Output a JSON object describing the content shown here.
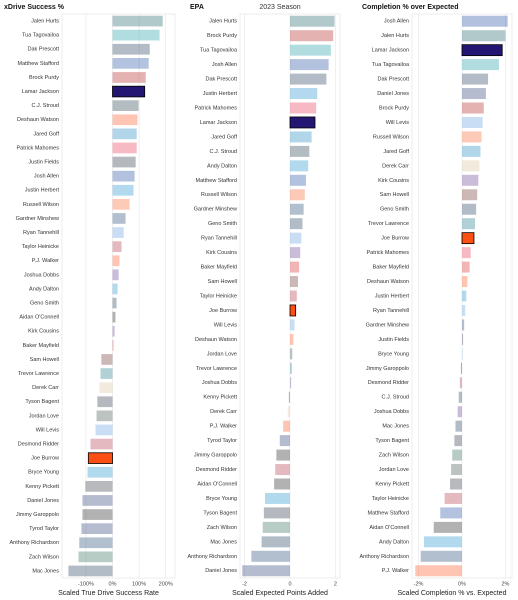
{
  "title": "2023 Season",
  "chart_data": [
    {
      "type": "bar",
      "orientation": "horizontal",
      "title": "xDrive Success %",
      "x_label": "Scaled True Drive Success Rate",
      "categories": [
        "Jalen Hurts",
        "Tua Tagovailoa",
        "Dak Prescott",
        "Matthew Stafford",
        "Brock Purdy",
        "Lamar Jackson",
        "C.J. Stroud",
        "Deshaun Watson",
        "Jared Goff",
        "Patrick Mahomes",
        "Justin Fields",
        "Josh Allen",
        "Justin Herbert",
        "Russell Wilson",
        "Gardner Minshew",
        "Ryan Tannehill",
        "Taylor Heinicke",
        "P.J. Walker",
        "Joshua Dobbs",
        "Andy Dalton",
        "Geno Smith",
        "Aidan O'Connell",
        "Kirk Cousins",
        "Baker Mayfield",
        "Sam Howell",
        "Trevor Lawrence",
        "Derek Carr",
        "Tyson Bagent",
        "Jordan Love",
        "Will Levis",
        "Desmond Ridder",
        "Joe Burrow",
        "Bryce Young",
        "Kenny Pickett",
        "Daniel Jones",
        "Jimmy Garoppolo",
        "Tyrod Taylor",
        "Anthony Richardson",
        "Zach Wilson",
        "Mac Jones"
      ],
      "values": [
        189,
        177,
        140,
        136,
        125,
        121,
        98,
        94,
        91,
        91,
        87,
        83,
        79,
        64,
        49,
        42,
        34,
        26,
        23,
        19,
        15,
        11,
        8,
        4,
        -42,
        -45,
        -49,
        -57,
        -60,
        -64,
        -83,
        -91,
        -94,
        -102,
        -113,
        -113,
        -117,
        -125,
        -128,
        -166
      ],
      "colors": [
        "#004C54",
        "#008E97",
        "#041E42",
        "#003594",
        "#AA0000",
        "#241773",
        "#03202F",
        "#FF3C00",
        "#0076B6",
        "#E31837",
        "#0B162A",
        "#00338D",
        "#0080C6",
        "#FB4F14",
        "#002C5F",
        "#4B92DB",
        "#A71930",
        "#FF3C00",
        "#4F2683",
        "#0085CA",
        "#002244",
        "#000000",
        "#4F2683",
        "#D50A0A",
        "#5A1414",
        "#006778",
        "#D3BC8D",
        "#0B162A",
        "#203731",
        "#4B92DB",
        "#A71930",
        "#FB4F14",
        "#0085CA",
        "#101820",
        "#0B2265",
        "#000000",
        "#0B2265",
        "#002C5F",
        "#125740",
        "#002244"
      ],
      "xlim": [
        -190,
        235
      ],
      "xticks": [
        {
          "value": -100,
          "label": "-100%"
        },
        {
          "value": 0,
          "label": "0%"
        },
        {
          "value": 100,
          "label": "100%"
        },
        {
          "value": 200,
          "label": "200%"
        }
      ]
    },
    {
      "type": "bar",
      "orientation": "horizontal",
      "title": "EPA",
      "x_label": "Scaled Expected Points Added",
      "categories": [
        "Jalen Hurts",
        "Brock Purdy",
        "Tua Tagovailoa",
        "Josh Allen",
        "Dak Prescott",
        "Justin Herbert",
        "Patrick Mahomes",
        "Lamar Jackson",
        "Jared Goff",
        "C.J. Stroud",
        "Andy Dalton",
        "Matthew Stafford",
        "Russell Wilson",
        "Gardner Minshew",
        "Geno Smith",
        "Ryan Tannehill",
        "Kirk Cousins",
        "Baker Mayfield",
        "Sam Howell",
        "Taylor Heinicke",
        "Joe Burrow",
        "Will Levis",
        "Deshaun Watson",
        "Jordan Love",
        "Trevor Lawrence",
        "Joshua Dobbs",
        "Kenny Pickett",
        "Derek Carr",
        "P.J. Walker",
        "Tyrod Taylor",
        "Jimmy Garoppolo",
        "Desmond Ridder",
        "Aidan O'Connell",
        "Bryce Young",
        "Tyson Bagent",
        "Zach Wilson",
        "Mac Jones",
        "Anthony Richardson",
        "Daniel Jones"
      ],
      "values": [
        1.96,
        1.9,
        1.8,
        1.7,
        1.6,
        1.2,
        1.15,
        1.1,
        0.95,
        0.85,
        0.8,
        0.7,
        0.65,
        0.6,
        0.55,
        0.5,
        0.45,
        0.4,
        0.35,
        0.3,
        0.25,
        0.2,
        0.15,
        0.1,
        0.08,
        0.05,
        -0.05,
        -0.1,
        -0.3,
        -0.45,
        -0.6,
        -0.65,
        -0.7,
        -1.1,
        -1.15,
        -1.2,
        -1.25,
        -1.7,
        -2.1
      ],
      "colors": [
        "#004C54",
        "#AA0000",
        "#008E97",
        "#00338D",
        "#041E42",
        "#0080C6",
        "#E31837",
        "#241773",
        "#0076B6",
        "#03202F",
        "#0085CA",
        "#003594",
        "#FB4F14",
        "#002C5F",
        "#002244",
        "#4B92DB",
        "#4F2683",
        "#D50A0A",
        "#5A1414",
        "#A71930",
        "#FB4F14",
        "#4B92DB",
        "#FF3C00",
        "#203731",
        "#006778",
        "#4F2683",
        "#101820",
        "#D3BC8D",
        "#FF3C00",
        "#0B2265",
        "#000000",
        "#A71930",
        "#000000",
        "#0085CA",
        "#0B162A",
        "#125740",
        "#002244",
        "#002C5F",
        "#0B2265"
      ],
      "xlim": [
        -2.2,
        2.2
      ],
      "xticks": [
        -2,
        0,
        2
      ]
    },
    {
      "type": "bar",
      "orientation": "horizontal",
      "title": "Completion % over Expected",
      "x_label": "Scaled Completion % vs. Expected",
      "categories": [
        "Josh Allen",
        "Jalen Hurts",
        "Lamar Jackson",
        "Tua Tagovailoa",
        "Dak Prescott",
        "Daniel Jones",
        "Brock Purdy",
        "Will Levis",
        "Russell Wilson",
        "Jared Goff",
        "Derek Carr",
        "Kirk Cousins",
        "Sam Howell",
        "Geno Smith",
        "Trevor Lawrence",
        "Joe Burrow",
        "Patrick Mahomes",
        "Baker Mayfield",
        "Deshaun Watson",
        "Justin Herbert",
        "Ryan Tannehill",
        "Gardner Minshew",
        "Justin Fields",
        "Bryce Young",
        "Jimmy Garoppolo",
        "Desmond Ridder",
        "C.J. Stroud",
        "Joshua Dobbs",
        "Mac Jones",
        "Tyson Bagent",
        "Zach Wilson",
        "Jordan Love",
        "Kenny Pickett",
        "Taylor Heinicke",
        "Matthew Stafford",
        "Aidan O'Connell",
        "Andy Dalton",
        "Anthony Richardson",
        "P.J. Walker"
      ],
      "values": [
        2.1,
        2.0,
        1.85,
        1.7,
        1.2,
        1.1,
        1.0,
        0.95,
        0.9,
        0.85,
        0.8,
        0.75,
        0.7,
        0.65,
        0.6,
        0.55,
        0.4,
        0.35,
        0.25,
        0.2,
        0.15,
        0.1,
        0.05,
        0.02,
        -0.05,
        -0.1,
        -0.15,
        -0.2,
        -0.3,
        -0.35,
        -0.45,
        -0.5,
        -0.55,
        -0.8,
        -1.0,
        -1.3,
        -1.75,
        -1.9,
        -2.15
      ],
      "colors": [
        "#00338D",
        "#004C54",
        "#241773",
        "#008E97",
        "#041E42",
        "#0B2265",
        "#AA0000",
        "#4B92DB",
        "#FB4F14",
        "#0076B6",
        "#D3BC8D",
        "#4F2683",
        "#5A1414",
        "#002244",
        "#006778",
        "#FB4F14",
        "#E31837",
        "#D50A0A",
        "#FF3C00",
        "#0080C6",
        "#4B92DB",
        "#002C5F",
        "#0B162A",
        "#0085CA",
        "#000000",
        "#A71930",
        "#03202F",
        "#4F2683",
        "#002244",
        "#0B162A",
        "#125740",
        "#203731",
        "#101820",
        "#A71930",
        "#003594",
        "#000000",
        "#0085CA",
        "#002C5F",
        "#FF3C00"
      ],
      "xlim": [
        -2.3,
        2.3
      ],
      "xticks": [
        {
          "value": -2,
          "label": "-2%"
        },
        {
          "value": 0,
          "label": "0%"
        },
        {
          "value": 2,
          "label": "2%"
        }
      ]
    }
  ],
  "bar_opacity": 0.3,
  "highlight": [
    "Lamar Jackson",
    "Joe Burrow"
  ],
  "grid": true
}
